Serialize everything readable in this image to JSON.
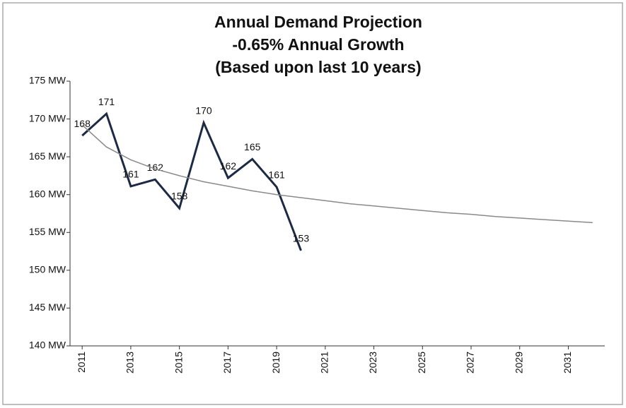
{
  "chart_data": {
    "type": "line",
    "title": [
      "Annual Demand Projection",
      "-0.65% Annual Growth",
      "(Based upon last 10 years)"
    ],
    "series": [
      {
        "color": "#1c2a44",
        "x": [
          2011,
          2012,
          2013,
          2014,
          2015,
          2016,
          2017,
          2018,
          2019,
          2020
        ],
        "values": [
          167.8,
          170.7,
          161.1,
          162.0,
          158.2,
          169.5,
          162.2,
          164.7,
          161.0,
          152.6
        ],
        "value_labels": [
          "168",
          "171",
          "161",
          "162",
          "158",
          "170",
          "162",
          "165",
          "161",
          "153"
        ]
      },
      {
        "color": "#8a8a8a",
        "x": [
          2011,
          2012,
          2013,
          2014,
          2015,
          2016,
          2017,
          2018,
          2019,
          2020,
          2021,
          2022,
          2023,
          2024,
          2025,
          2026,
          2027,
          2028,
          2029,
          2030,
          2031,
          2032
        ],
        "values": [
          169.2,
          166.3,
          164.6,
          163.4,
          162.5,
          161.7,
          161.1,
          160.5,
          160.0,
          159.6,
          159.2,
          158.8,
          158.5,
          158.2,
          157.9,
          157.6,
          157.4,
          157.1,
          156.9,
          156.7,
          156.5,
          156.3
        ]
      }
    ],
    "xlim": [
      2010.5,
      2032.5
    ],
    "xticks": [
      2011,
      2013,
      2015,
      2017,
      2019,
      2021,
      2023,
      2025,
      2027,
      2029,
      2031
    ],
    "ylim": [
      140,
      175
    ],
    "yticks": [
      {
        "value": 140,
        "label": "140 MW"
      },
      {
        "value": 145,
        "label": "145 MW"
      },
      {
        "value": 150,
        "label": "150 MW"
      },
      {
        "value": 155,
        "label": "155 MW"
      },
      {
        "value": 160,
        "label": "160 MW"
      },
      {
        "value": 165,
        "label": "165 MW"
      },
      {
        "value": 170,
        "label": "170 MW"
      },
      {
        "value": 175,
        "label": "175 MW"
      }
    ],
    "grid": false
  }
}
